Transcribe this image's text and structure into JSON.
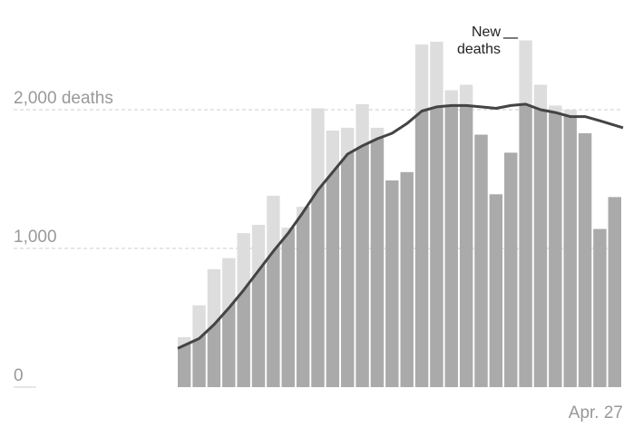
{
  "chart_data": {
    "type": "bar",
    "title": "",
    "xlabel": "",
    "ylabel": "",
    "ylim": [
      0,
      2600
    ],
    "grid": true,
    "y_ticks": [
      {
        "value": 0,
        "label": "0"
      },
      {
        "value": 1000,
        "label": "1,000"
      },
      {
        "value": 2000,
        "label": "2,000 deaths"
      }
    ],
    "x_tick_last_label": "Apr. 27",
    "annotation": "New deaths",
    "annotation_lines": [
      "New",
      "deaths"
    ],
    "series": [
      {
        "kind": "bars",
        "values": [
          360,
          590,
          850,
          930,
          1110,
          1170,
          1380,
          1150,
          1300,
          2010,
          1850,
          1870,
          2040,
          1870,
          1490,
          1550,
          2470,
          2490,
          2140,
          2180,
          1820,
          1390,
          1690,
          2500,
          2180,
          2030,
          2000,
          1830,
          1140,
          1370
        ]
      },
      {
        "kind": "line",
        "values": [
          280,
          350,
          450,
          570,
          700,
          840,
          980,
          1110,
          1260,
          1420,
          1550,
          1680,
          1740,
          1790,
          1830,
          1900,
          1990,
          2020,
          2030,
          2030,
          2020,
          2010,
          2030,
          2040,
          2000,
          1980,
          1950,
          1950,
          1920,
          1870
        ]
      }
    ],
    "colors": {
      "bar_fill": "#dddddd",
      "under_line_fill": "#aaaaaa",
      "line": "#444444",
      "grid": "#cccccc",
      "tick_text": "#999999",
      "annotation_text": "#222222"
    }
  }
}
